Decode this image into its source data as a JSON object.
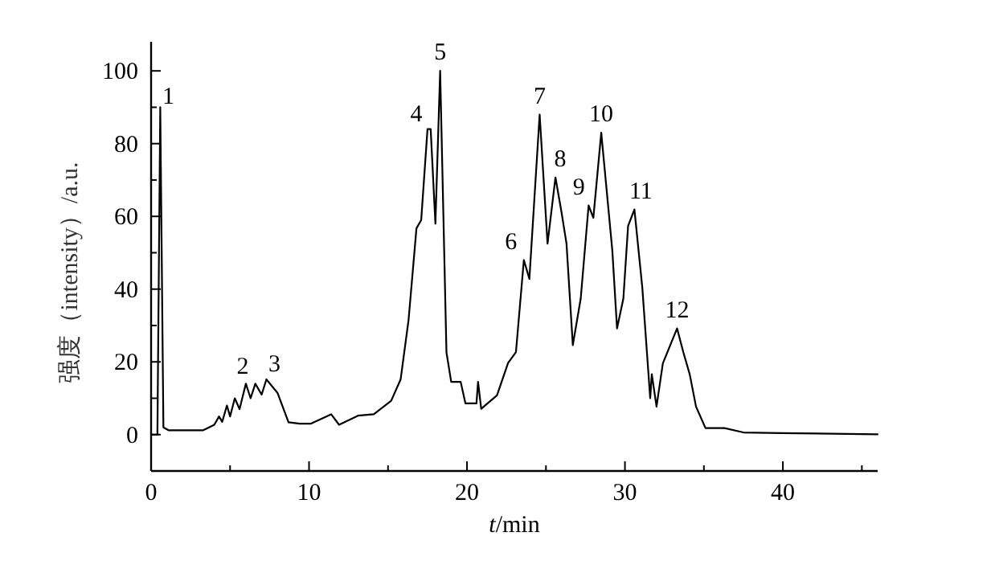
{
  "chart_data": {
    "type": "line",
    "xlabel": "t/min",
    "ylabel": "强度（intensity）/a.u.",
    "xlim": [
      0,
      46
    ],
    "ylim": [
      -10,
      108
    ],
    "xticks": [
      0,
      {
        "value": 5,
        "label": null
      },
      10,
      {
        "value": 15,
        "label": null
      },
      20,
      {
        "value": 25,
        "label": null
      },
      30,
      {
        "value": 35,
        "label": null
      },
      40,
      {
        "value": 45,
        "label": null
      }
    ],
    "yticks": [
      0,
      {
        "value": 10,
        "label": null
      },
      20,
      {
        "value": 30,
        "label": null
      },
      40,
      {
        "value": 50,
        "label": null
      },
      60,
      {
        "value": 70,
        "label": null
      },
      80,
      {
        "value": 90,
        "label": null
      },
      100
    ],
    "marker": "none",
    "line_style": "solid",
    "series": [
      {
        "color": "#000000",
        "x": [
          0,
          0.4,
          0.58,
          0.78,
          1.1,
          3.3,
          4.0,
          4.3,
          4.5,
          4.8,
          5.0,
          5.3,
          5.6,
          6.0,
          6.3,
          6.6,
          7.0,
          7.3,
          8.0,
          8.7,
          9.4,
          10.1,
          11.4,
          11.9,
          13.1,
          14.1,
          15.2,
          15.8,
          16.3,
          16.8,
          17.1,
          17.5,
          17.7,
          18.0,
          18.3,
          18.7,
          19.0,
          19.6,
          19.9,
          20.6,
          20.7,
          20.9,
          21.9,
          22.6,
          23.1,
          23.6,
          23.95,
          24.6,
          25.1,
          25.6,
          25.99,
          26.3,
          26.7,
          27.2,
          27.7,
          28.0,
          28.5,
          29.2,
          29.5,
          29.9,
          30.2,
          30.6,
          31.1,
          31.6,
          31.7,
          32.0,
          32.4,
          33.3,
          33.7,
          34.1,
          34.5,
          35.1,
          36.3,
          37.5,
          39.9,
          46
        ],
        "values": [
          0,
          0,
          90,
          2,
          1.2,
          1.2,
          2.7,
          5,
          3.5,
          8,
          5,
          10,
          7,
          14,
          10,
          14,
          11,
          15.2,
          11.5,
          3.4,
          3,
          3,
          5.6,
          2.7,
          5.2,
          5.6,
          9.3,
          15.2,
          31.5,
          56.7,
          59,
          84,
          84,
          58,
          100,
          22.6,
          14.5,
          14.5,
          8.6,
          8.6,
          14.5,
          7.1,
          10.8,
          19.7,
          22.7,
          48,
          42.8,
          88,
          52.5,
          70.7,
          61,
          52.5,
          24.6,
          37.4,
          63,
          59.6,
          83,
          50.7,
          29.2,
          37.4,
          57.4,
          61.9,
          40.4,
          10,
          16.6,
          7.7,
          19.6,
          29.2,
          22.6,
          16.6,
          7.7,
          1.8,
          1.8,
          0.6,
          0.4,
          0.1
        ]
      }
    ],
    "annotations": [
      {
        "text": "1",
        "x": 0.58,
        "y": 90
      },
      {
        "text": "2",
        "x": 6.0,
        "y": 14
      },
      {
        "text": "3",
        "x": 7.3,
        "y": 15.2
      },
      {
        "text": "4",
        "x": 17.6,
        "y": 84
      },
      {
        "text": "5",
        "x": 18.3,
        "y": 100
      },
      {
        "text": "6",
        "x": 23.6,
        "y": 48
      },
      {
        "text": "7",
        "x": 24.6,
        "y": 88
      },
      {
        "text": "8",
        "x": 25.6,
        "y": 70.7
      },
      {
        "text": "9",
        "x": 27.7,
        "y": 63
      },
      {
        "text": "10",
        "x": 28.5,
        "y": 83
      },
      {
        "text": "11",
        "x": 30.6,
        "y": 61.9
      },
      {
        "text": "12",
        "x": 33.3,
        "y": 29.2
      }
    ]
  }
}
